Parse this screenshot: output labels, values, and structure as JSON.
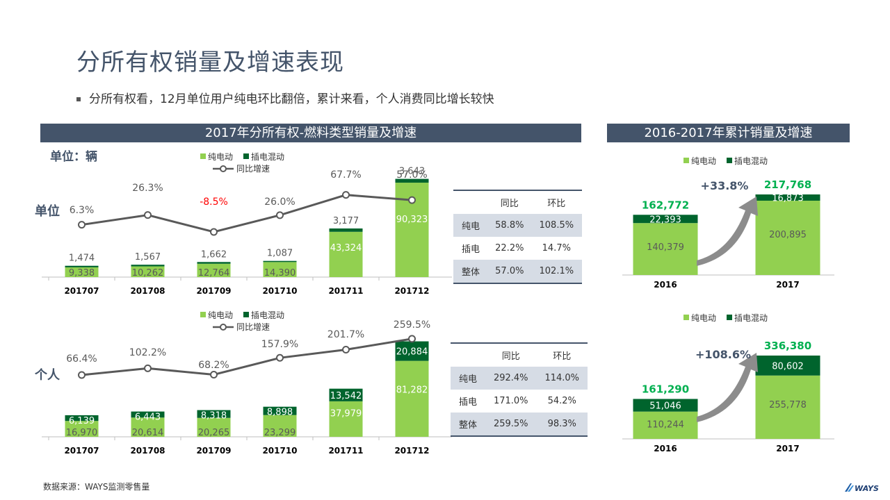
{
  "page": {
    "title": "分所有权销量及增速表现",
    "subtitle": "分所有权看，12月单位用户纯电环比翻倍，累计来看，个人消费同比增长较快",
    "left_banner": "2017年分所有权-燃料类型销量及增速",
    "right_banner": "2016-2017年累计销量及增速",
    "unit_label": "单位：辆",
    "row_label_unit": "单位",
    "row_label_personal": "个人",
    "source": "数据来源：WAYS监测零售量",
    "logo_text": "WAYS"
  },
  "colors": {
    "bev": "#92d050",
    "phev": "#00642d",
    "line": "#595959",
    "banner": "#44546a",
    "negative": "#ff0000",
    "growth": "#00b050",
    "arrow": "#8c8c8c",
    "table_shade": "#d6dce5"
  },
  "chart_data": [
    {
      "id": "unit-monthly",
      "type": "bar",
      "stacked": true,
      "categories": [
        "201707",
        "201708",
        "201709",
        "201710",
        "201711",
        "201712"
      ],
      "series": [
        {
          "name": "纯电动",
          "values": [
            9338,
            10262,
            12764,
            14390,
            43324,
            90323
          ],
          "labels": [
            "9,338",
            "10,262",
            "12,764",
            "14,390",
            "43,324",
            "90,323"
          ]
        },
        {
          "name": "插电混动",
          "values": [
            1474,
            1567,
            1662,
            1087,
            3177,
            3643
          ],
          "labels": [
            "1,474",
            "1,567",
            "1,662",
            "1,087",
            "3,177",
            "3,643"
          ]
        }
      ],
      "line": {
        "name": "同比增速",
        "values": [
          6.3,
          26.3,
          -8.5,
          26.0,
          67.7,
          57.0
        ],
        "labels": [
          "6.3%",
          "26.3%",
          "-8.5%",
          "26.0%",
          "67.7%",
          "57.0%"
        ]
      },
      "ylim": [
        0,
        95000
      ],
      "legend": "top"
    },
    {
      "id": "personal-monthly",
      "type": "bar",
      "stacked": true,
      "categories": [
        "201707",
        "201708",
        "201709",
        "201710",
        "201711",
        "201712"
      ],
      "series": [
        {
          "name": "纯电动",
          "values": [
            16970,
            20614,
            20265,
            23299,
            37979,
            81282
          ],
          "labels": [
            "16,970",
            "20,614",
            "20,265",
            "23,299",
            "37,979",
            "81,282"
          ]
        },
        {
          "name": "插电混动",
          "values": [
            6139,
            6443,
            8318,
            8898,
            13542,
            20884
          ],
          "labels": [
            "6,139",
            "6,443",
            "8,318",
            "8,898",
            "13,542",
            "20,884"
          ]
        }
      ],
      "line": {
        "name": "同比增速",
        "values": [
          66.4,
          102.2,
          68.2,
          157.9,
          201.7,
          259.5
        ],
        "labels": [
          "66.4%",
          "102.2%",
          "68.2%",
          "157.9%",
          "201.7%",
          "259.5%"
        ]
      },
      "ylim": [
        0,
        110000
      ],
      "legend": "top"
    },
    {
      "id": "unit-annual",
      "type": "bar",
      "stacked": true,
      "categories": [
        "2016",
        "2017"
      ],
      "series": [
        {
          "name": "纯电动",
          "values": [
            140379,
            200895
          ],
          "labels": [
            "140,379",
            "200,895"
          ]
        },
        {
          "name": "插电混动",
          "values": [
            22393,
            16873
          ],
          "labels": [
            "22,393",
            "16,873"
          ]
        }
      ],
      "totals": [
        "162,772",
        "217,768"
      ],
      "growth": "+33.8%",
      "ylim": [
        0,
        217768
      ],
      "legend": "top"
    },
    {
      "id": "personal-annual",
      "type": "bar",
      "stacked": true,
      "categories": [
        "2016",
        "2017"
      ],
      "series": [
        {
          "name": "纯电动",
          "values": [
            110244,
            255778
          ],
          "labels": [
            "110,244",
            "255,778"
          ]
        },
        {
          "name": "插电混动",
          "values": [
            51046,
            80602
          ],
          "labels": [
            "51,046",
            "80,602"
          ]
        }
      ],
      "totals": [
        "161,290",
        "336,380"
      ],
      "growth": "+108.6%",
      "ylim": [
        0,
        336380
      ],
      "legend": "top"
    },
    {
      "id": "unit-table",
      "type": "table",
      "header": [
        "",
        "同比",
        "环比"
      ],
      "rows": [
        [
          "纯电",
          "58.8%",
          "108.5%"
        ],
        [
          "插电",
          "22.2%",
          "14.7%"
        ],
        [
          "整体",
          "57.0%",
          "102.1%"
        ]
      ]
    },
    {
      "id": "personal-table",
      "type": "table",
      "header": [
        "",
        "同比",
        "环比"
      ],
      "rows": [
        [
          "纯电",
          "292.4%",
          "114.0%"
        ],
        [
          "插电",
          "171.0%",
          "54.2%"
        ],
        [
          "整体",
          "259.5%",
          "98.3%"
        ]
      ]
    }
  ]
}
